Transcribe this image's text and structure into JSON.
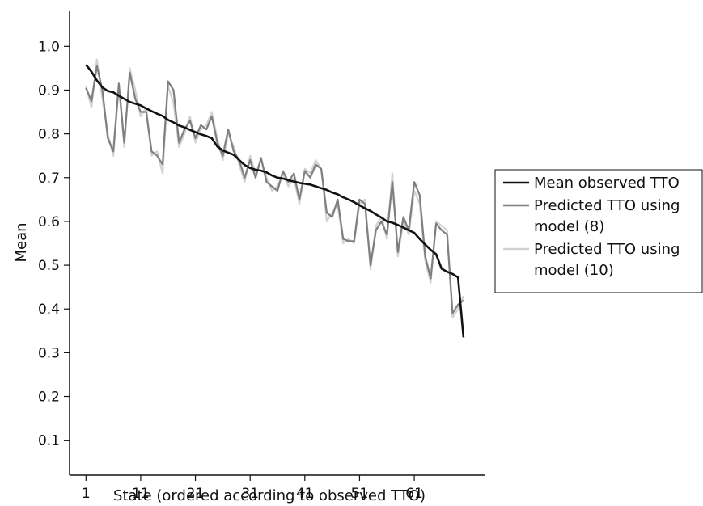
{
  "chart_data": {
    "type": "line",
    "xlabel": "State (ordered according to observed TTO)",
    "ylabel": "Mean",
    "xlim": [
      -2,
      74
    ],
    "ylim": [
      0.02,
      1.08
    ],
    "x_ticks": [
      1,
      11,
      21,
      31,
      41,
      51,
      61
    ],
    "y_ticks": [
      0.1,
      0.2,
      0.3,
      0.4,
      0.5,
      0.6,
      0.7,
      0.8,
      0.9,
      1.0
    ],
    "y_tick_labels": [
      "0.1",
      "0.2",
      "0.3",
      "0.4",
      "0.5",
      "0.6",
      "0.7",
      "0.8",
      "0.9",
      "1.0"
    ],
    "grid": false,
    "legend_position": "right",
    "x": [
      1,
      2,
      3,
      4,
      5,
      6,
      7,
      8,
      9,
      10,
      11,
      12,
      13,
      14,
      15,
      16,
      17,
      18,
      19,
      20,
      21,
      22,
      23,
      24,
      25,
      26,
      27,
      28,
      29,
      30,
      31,
      32,
      33,
      34,
      35,
      36,
      37,
      38,
      39,
      40,
      41,
      42,
      43,
      44,
      45,
      46,
      47,
      48,
      49,
      50,
      51,
      52,
      53,
      54,
      55,
      56,
      57,
      58,
      59,
      60,
      61,
      62,
      63,
      64,
      65,
      66,
      67,
      68,
      69,
      70
    ],
    "series": [
      {
        "name": "Mean observed TTO",
        "color": "#111111",
        "values": [
          0.958,
          0.942,
          0.922,
          0.906,
          0.898,
          0.895,
          0.887,
          0.88,
          0.873,
          0.869,
          0.865,
          0.858,
          0.852,
          0.846,
          0.841,
          0.832,
          0.826,
          0.819,
          0.815,
          0.809,
          0.804,
          0.799,
          0.795,
          0.79,
          0.771,
          0.762,
          0.757,
          0.752,
          0.74,
          0.729,
          0.722,
          0.718,
          0.716,
          0.712,
          0.705,
          0.7,
          0.698,
          0.694,
          0.691,
          0.688,
          0.686,
          0.684,
          0.68,
          0.676,
          0.672,
          0.666,
          0.662,
          0.655,
          0.65,
          0.644,
          0.637,
          0.63,
          0.624,
          0.616,
          0.609,
          0.6,
          0.597,
          0.592,
          0.586,
          0.58,
          0.574,
          0.56,
          0.547,
          0.535,
          0.525,
          0.492,
          0.485,
          0.48,
          0.472,
          0.335
        ]
      },
      {
        "name": "Predicted TTO using model (8)",
        "color": "#7f7f7f",
        "values": [
          0.905,
          0.875,
          0.955,
          0.9,
          0.79,
          0.76,
          0.915,
          0.78,
          0.94,
          0.88,
          0.85,
          0.85,
          0.76,
          0.75,
          0.73,
          0.92,
          0.9,
          0.78,
          0.81,
          0.83,
          0.79,
          0.82,
          0.81,
          0.84,
          0.78,
          0.75,
          0.81,
          0.76,
          0.74,
          0.7,
          0.74,
          0.7,
          0.745,
          0.69,
          0.68,
          0.67,
          0.715,
          0.69,
          0.71,
          0.65,
          0.715,
          0.7,
          0.73,
          0.72,
          0.62,
          0.61,
          0.65,
          0.56,
          0.555,
          0.555,
          0.65,
          0.64,
          0.5,
          0.58,
          0.6,
          0.57,
          0.69,
          0.53,
          0.61,
          0.58,
          0.69,
          0.66,
          0.52,
          0.47,
          0.595,
          0.58,
          0.57,
          0.39,
          0.41,
          0.42
        ]
      },
      {
        "name": "Predicted TTO using model (10)",
        "color": "#d2d2d2",
        "values": [
          0.91,
          0.86,
          0.97,
          0.88,
          0.8,
          0.75,
          0.91,
          0.77,
          0.95,
          0.9,
          0.84,
          0.86,
          0.75,
          0.76,
          0.71,
          0.91,
          0.87,
          0.77,
          0.8,
          0.84,
          0.78,
          0.81,
          0.82,
          0.85,
          0.79,
          0.74,
          0.8,
          0.77,
          0.73,
          0.69,
          0.75,
          0.71,
          0.74,
          0.7,
          0.67,
          0.68,
          0.71,
          0.68,
          0.7,
          0.64,
          0.72,
          0.71,
          0.74,
          0.72,
          0.6,
          0.62,
          0.64,
          0.55,
          0.56,
          0.55,
          0.64,
          0.65,
          0.49,
          0.59,
          0.61,
          0.56,
          0.71,
          0.52,
          0.6,
          0.57,
          0.67,
          0.64,
          0.51,
          0.46,
          0.6,
          0.59,
          0.58,
          0.38,
          0.4,
          0.43
        ]
      }
    ],
    "legend": [
      {
        "lines": [
          "Mean observed TTO"
        ],
        "color": "#111111"
      },
      {
        "lines": [
          "Predicted TTO using",
          "model (8)"
        ],
        "color": "#7f7f7f"
      },
      {
        "lines": [
          "Predicted TTO using",
          "model (10)"
        ],
        "color": "#d2d2d2"
      }
    ]
  }
}
